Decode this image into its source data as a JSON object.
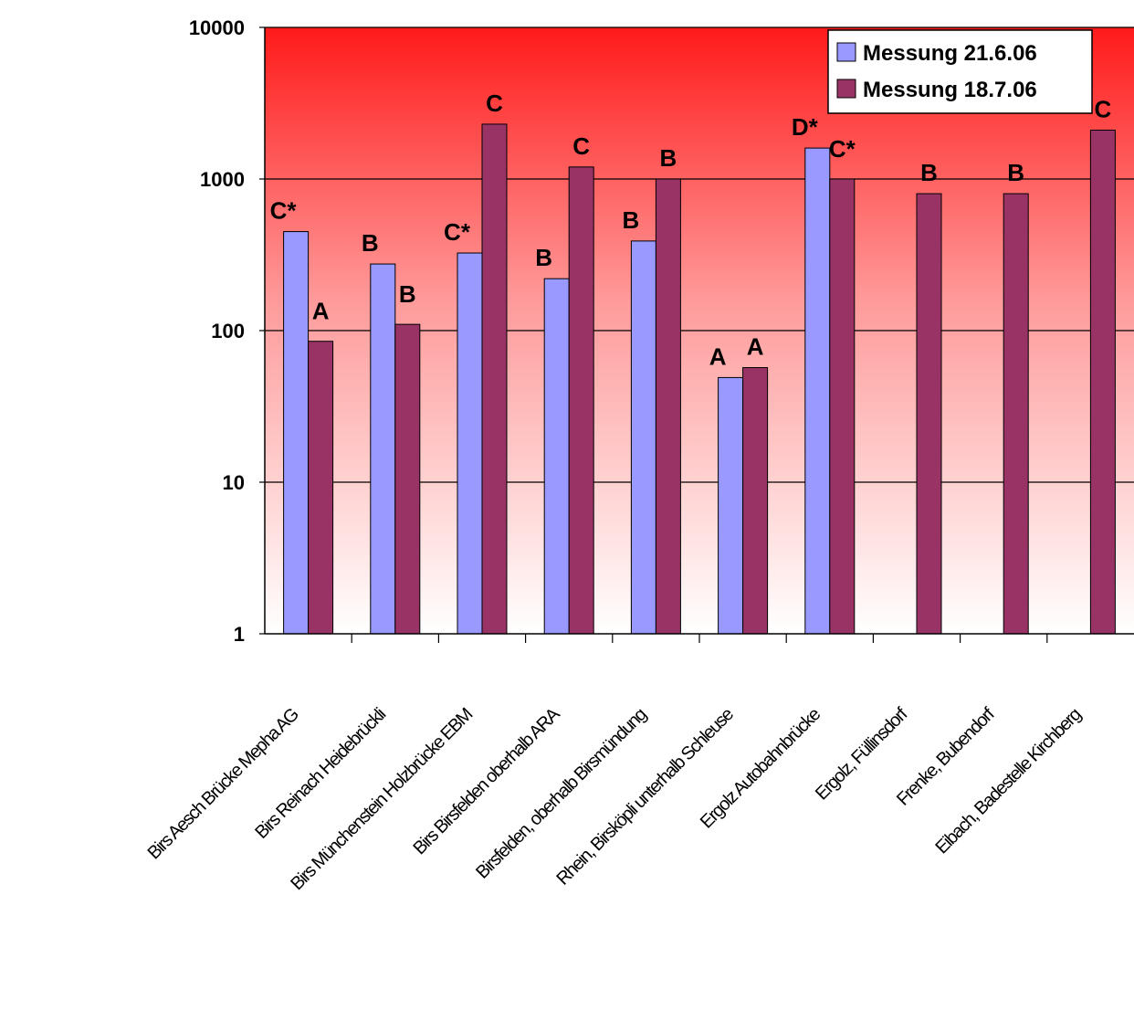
{
  "chart_data": {
    "type": "bar",
    "scale": "log",
    "ylim": [
      1,
      10000
    ],
    "yticks": [
      "1",
      "10",
      "100",
      "1000",
      "10000"
    ],
    "grid": true,
    "legend_position": "top-right",
    "background": "gradient from #ff1a1a at top to #ffffff at bottom",
    "categories": [
      "Birs Aesch Brücke Mepha AG",
      "Birs Reinach Heidebrückli",
      "Birs Münchenstein Holzbrücke EBM",
      "Birs Birsfelden oberhalb ARA",
      "Birsfelden, oberhalb Birsmündung",
      "Rhein, Birsköpli unterhalb Schleuse",
      "Ergolz Autobahnbrücke",
      "Ergolz, Füllinsdorf",
      "Frenke, Bubendorf",
      "Eibach, Badestelle Kirchberg"
    ],
    "series": [
      {
        "name": "Messung 21.6.06",
        "color": "#9999ff",
        "values": [
          450,
          275,
          325,
          220,
          390,
          49,
          1600,
          null,
          null,
          null
        ],
        "labels": [
          "C*",
          "B",
          "C*",
          "B",
          "B",
          "A",
          "D*",
          "",
          "",
          ""
        ]
      },
      {
        "name": "Messung 18.7.06",
        "color": "#993366",
        "values": [
          85,
          110,
          2300,
          1200,
          1000,
          57,
          1000,
          800,
          800,
          2100
        ],
        "labels": [
          "A",
          "B",
          "C",
          "C",
          "B",
          "A",
          "C*",
          "B",
          "B",
          "C"
        ]
      }
    ]
  }
}
